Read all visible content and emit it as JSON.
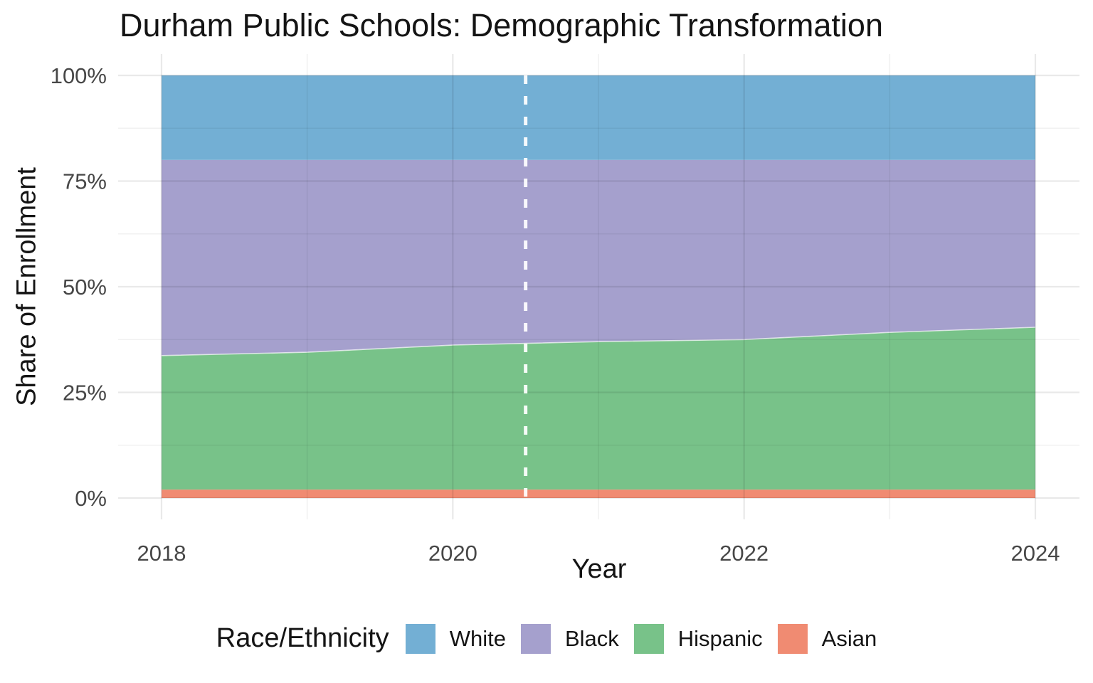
{
  "chart_title": "Durham Public Schools: Demographic Transformation",
  "axes": {
    "x_label": "Year",
    "y_label": "Share of Enrollment",
    "x_ticks": [
      "2018",
      "2020",
      "2022",
      "2024"
    ],
    "y_ticks": [
      "0%",
      "25%",
      "50%",
      "75%",
      "100%"
    ]
  },
  "legend": {
    "title": "Race/Ethnicity",
    "items": [
      {
        "label": "White",
        "color": "#73AFD4"
      },
      {
        "label": "Black",
        "color": "#A5A0CD"
      },
      {
        "label": "Hispanic",
        "color": "#78C289"
      },
      {
        "label": "Asian",
        "color": "#F08B72"
      }
    ]
  },
  "colors": {
    "background": "#FFFFFF",
    "gridline": "#EBEBEB",
    "tick_text": "#474747",
    "title_text": "#141414",
    "vline": "#FFFFFF"
  },
  "chart_data": {
    "type": "area",
    "stacked": true,
    "title": "Durham Public Schools: Demographic Transformation",
    "xlabel": "Year",
    "ylabel": "Share of Enrollment",
    "x": [
      2018,
      2019,
      2020,
      2021,
      2022,
      2023,
      2024
    ],
    "xlim": [
      2018,
      2024
    ],
    "ylim": [
      0,
      100
    ],
    "y_unit": "percent",
    "grid": true,
    "legend_position": "bottom",
    "x_ticks_major": [
      2018,
      2020,
      2022,
      2024
    ],
    "x_ticks_minor": [
      2019,
      2021,
      2023
    ],
    "y_ticks_major": [
      0,
      25,
      50,
      75,
      100
    ],
    "y_ticks_minor": [
      12.5,
      37.5,
      62.5,
      87.5
    ],
    "series": [
      {
        "name": "Asian",
        "color": "#F08B72",
        "values": [
          2,
          2,
          2,
          2,
          2,
          2,
          2
        ]
      },
      {
        "name": "Hispanic",
        "color": "#78C289",
        "values": [
          31.7,
          32.5,
          34.2,
          35.0,
          35.5,
          37.2,
          38.4
        ]
      },
      {
        "name": "Black",
        "color": "#A5A0CD",
        "values": [
          46.3,
          45.5,
          43.8,
          43.0,
          42.5,
          40.8,
          39.6
        ]
      },
      {
        "name": "White",
        "color": "#73AFD4",
        "values": [
          20,
          20,
          20,
          20,
          20,
          20,
          20
        ]
      }
    ],
    "annotations": [
      {
        "type": "vline",
        "x": 2020.5,
        "line_style": "dashed",
        "color": "#FFFFFF"
      }
    ]
  }
}
